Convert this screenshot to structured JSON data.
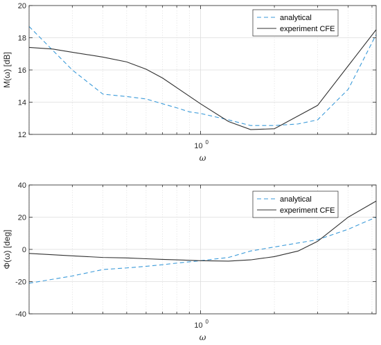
{
  "colors": {
    "analytical": "#3a9ad9",
    "experiment": "#303030",
    "grid": "#dcdcdc",
    "axis": "#262626"
  },
  "chart_data": [
    {
      "type": "line",
      "xscale": "log",
      "xlim": [
        0.2,
        5.2
      ],
      "ylim": [
        12,
        20
      ],
      "yticks": [
        12,
        14,
        16,
        18,
        20
      ],
      "xtick_major": 1,
      "xtick_label": "10",
      "xtick_label_exp": "0",
      "xlabel": "ω",
      "ylabel": "M(ω) [dB]",
      "grid": true,
      "legend": "top-right",
      "series": [
        {
          "name": "analytical",
          "style": "dashed",
          "x": [
            0.2,
            0.3,
            0.4,
            0.5,
            0.6,
            0.7,
            0.8,
            0.9,
            1.0,
            1.3,
            1.6,
            2.0,
            2.5,
            3.0,
            4.0,
            5.2
          ],
          "y": [
            18.7,
            16.0,
            14.5,
            14.35,
            14.2,
            13.9,
            13.65,
            13.4,
            13.3,
            12.9,
            12.55,
            12.55,
            12.65,
            12.9,
            14.8,
            18.2
          ]
        },
        {
          "name": "experiment CFE",
          "style": "solid",
          "x": [
            0.2,
            0.25,
            0.3,
            0.4,
            0.5,
            0.6,
            0.7,
            0.8,
            1.0,
            1.3,
            1.6,
            2.0,
            3.0,
            5.2
          ],
          "y": [
            17.4,
            17.3,
            17.1,
            16.8,
            16.5,
            16.05,
            15.5,
            14.9,
            13.9,
            12.8,
            12.3,
            12.35,
            13.8,
            18.5
          ]
        }
      ]
    },
    {
      "type": "line",
      "xscale": "log",
      "xlim": [
        0.2,
        5.2
      ],
      "ylim": [
        -40,
        40
      ],
      "yticks": [
        -40,
        -20,
        0,
        20,
        40
      ],
      "xtick_major": 1,
      "xtick_label": "10",
      "xtick_label_exp": "0",
      "xlabel": "ω",
      "ylabel": "Φ(ω) [deg]",
      "grid": true,
      "legend": "top-right",
      "series": [
        {
          "name": "analytical",
          "style": "dashed",
          "x": [
            0.2,
            0.3,
            0.4,
            0.5,
            0.6,
            0.7,
            0.8,
            1.0,
            1.3,
            1.6,
            2.0,
            2.5,
            3.0,
            4.0,
            5.2
          ],
          "y": [
            -21.0,
            -16.5,
            -12.5,
            -11.5,
            -10.5,
            -9.5,
            -8.5,
            -7.0,
            -5.0,
            -1.0,
            1.5,
            4.0,
            6.0,
            12.5,
            20.0
          ]
        },
        {
          "name": "experiment CFE",
          "style": "solid",
          "x": [
            0.2,
            0.3,
            0.4,
            0.5,
            0.6,
            0.7,
            0.8,
            1.0,
            1.3,
            1.6,
            2.0,
            2.5,
            3.0,
            4.0,
            5.2
          ],
          "y": [
            -2.5,
            -4.0,
            -5.0,
            -5.3,
            -5.8,
            -6.2,
            -6.5,
            -7.0,
            -7.3,
            -6.5,
            -4.5,
            -1.0,
            5.0,
            20.0,
            30.0
          ]
        }
      ]
    }
  ]
}
